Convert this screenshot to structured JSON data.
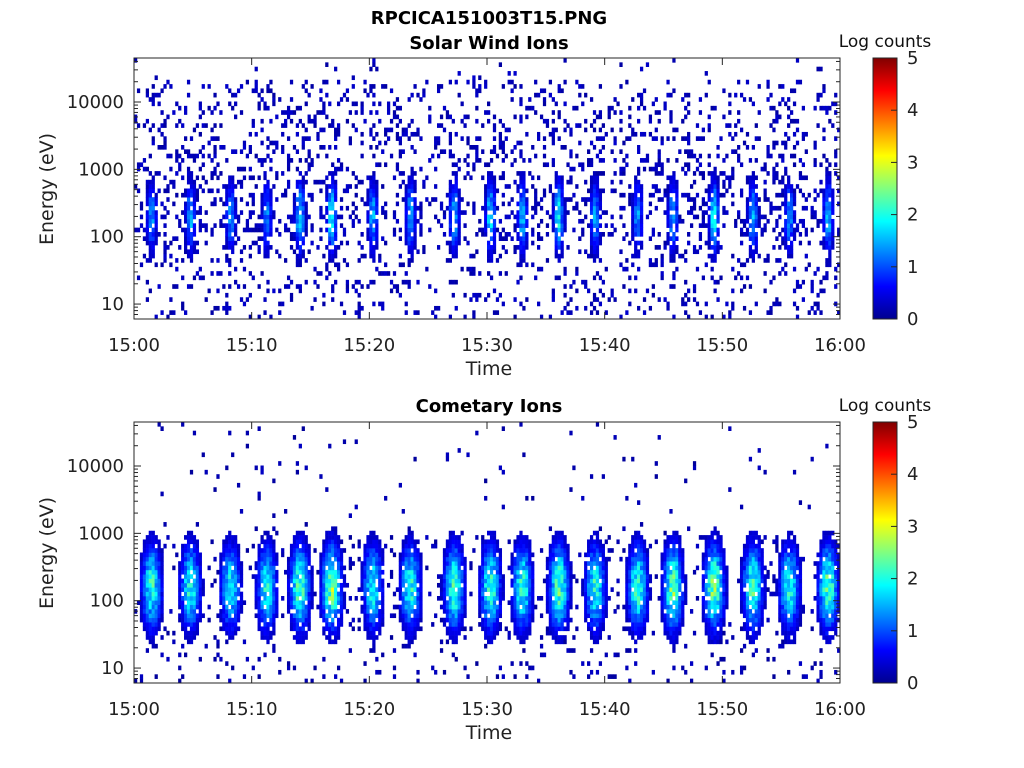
{
  "figure": {
    "title": "RPCICA151003T15.PNG"
  },
  "colormap": [
    "#00008f",
    "#0000ff",
    "#0080ff",
    "#00ffff",
    "#80ff80",
    "#ffff00",
    "#ff8000",
    "#ff0000",
    "#800000"
  ],
  "chart_data": [
    {
      "type": "heatmap",
      "title": "Solar Wind Ions",
      "xlabel": "Time",
      "ylabel": "Energy (eV)",
      "x_ticks": [
        "15:00",
        "15:10",
        "15:20",
        "15:30",
        "15:40",
        "15:50",
        "16:00"
      ],
      "x_range": [
        "15:00",
        "16:00"
      ],
      "y_scale": "log",
      "y_ticks": [
        10,
        100,
        1000,
        10000
      ],
      "y_tick_labels": [
        "10",
        "100",
        "1000",
        "10000"
      ],
      "ylim": [
        6,
        45000
      ],
      "colorbar": {
        "label": "Log counts",
        "range": [
          0,
          5
        ],
        "ticks": [
          "0",
          "1",
          "2",
          "3",
          "4",
          "5"
        ]
      },
      "sweep_times_min": [
        1.5,
        4.8,
        8.2,
        11.3,
        14.1,
        16.8,
        20.3,
        23.5,
        27.2,
        30.3,
        33.0,
        36.1,
        39.2,
        42.8,
        45.8,
        49.3,
        52.6,
        55.7,
        59.0
      ],
      "peak_log_counts": [
        1.4,
        1.5,
        1.3,
        1.3,
        1.8,
        2.0,
        1.5,
        1.6,
        1.7,
        1.8,
        1.6,
        1.9,
        1.5,
        1.4,
        1.6,
        2.0,
        1.6,
        1.4,
        1.7
      ],
      "peak_energy_eV": 200,
      "background_log_counts": 0.1
    },
    {
      "type": "heatmap",
      "title": "Cometary Ions",
      "xlabel": "Time",
      "ylabel": "Energy (eV)",
      "x_ticks": [
        "15:00",
        "15:10",
        "15:20",
        "15:30",
        "15:40",
        "15:50",
        "16:00"
      ],
      "x_range": [
        "15:00",
        "16:00"
      ],
      "y_scale": "log",
      "y_ticks": [
        10,
        100,
        1000,
        10000
      ],
      "y_tick_labels": [
        "10",
        "100",
        "1000",
        "10000"
      ],
      "ylim": [
        6,
        45000
      ],
      "colorbar": {
        "label": "Log counts",
        "range": [
          0,
          5
        ],
        "ticks": [
          "0",
          "1",
          "2",
          "3",
          "4",
          "5"
        ]
      },
      "sweep_times_min": [
        1.5,
        4.8,
        8.2,
        11.3,
        14.1,
        16.8,
        20.3,
        23.5,
        27.2,
        30.3,
        33.0,
        36.1,
        39.2,
        42.8,
        45.8,
        49.3,
        52.6,
        55.7,
        59.0
      ],
      "peak_log_counts": [
        2.1,
        2.1,
        1.9,
        2.0,
        2.4,
        2.6,
        2.0,
        2.1,
        2.3,
        2.3,
        2.2,
        2.4,
        2.1,
        2.2,
        2.5,
        2.6,
        2.3,
        2.1,
        2.4
      ],
      "peak_energy_eV": 160,
      "background_log_counts": 0.05
    }
  ]
}
